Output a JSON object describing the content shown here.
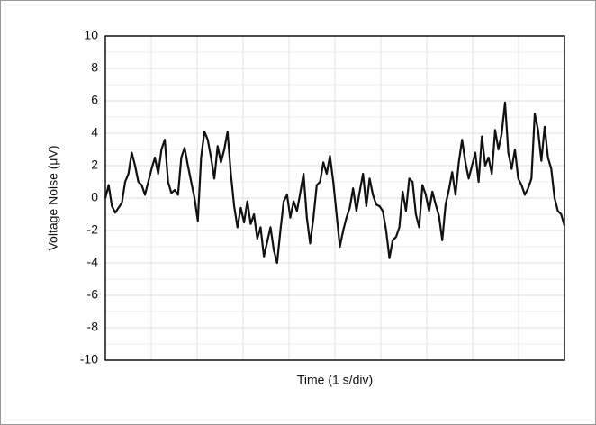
{
  "chart_data": {
    "type": "line",
    "xlabel": "Time (1 s/div)",
    "ylabel": "Voltage Noise (μV)",
    "ylim": [
      -10,
      10
    ],
    "yticks": [
      -10,
      -8,
      -6,
      -4,
      -2,
      0,
      2,
      4,
      6,
      8,
      10
    ],
    "grid": true,
    "color": "#111111",
    "values": [
      0,
      0.8,
      -0.5,
      -0.9,
      -0.6,
      -0.3,
      1,
      1.5,
      2.8,
      2,
      1,
      0.8,
      0.2,
      1,
      1.8,
      2.5,
      1.5,
      3,
      3.6,
      1,
      0.3,
      0.5,
      0.2,
      2.5,
      3.1,
      2,
      1,
      0,
      -1.4,
      2.5,
      4.1,
      3.6,
      2.5,
      1.2,
      3.2,
      2.2,
      3,
      4.1,
      1.5,
      -0.5,
      -1.8,
      -0.6,
      -1.5,
      -0.2,
      -1.6,
      -1,
      -2.5,
      -1.8,
      -3.6,
      -2.7,
      -1.8,
      -3.2,
      -4,
      -2,
      -0.2,
      0.2,
      -1.2,
      -0.2,
      -0.8,
      0.3,
      1.5,
      -1.2,
      -2.8,
      -1.2,
      0.8,
      1,
      2.2,
      1.5,
      2.6,
      1,
      -1,
      -3,
      -2,
      -1.2,
      -0.6,
      0.6,
      -0.8,
      0.4,
      1.5,
      -0.5,
      1.2,
      0.2,
      -0.4,
      -0.5,
      -0.8,
      -2,
      -3.7,
      -2.6,
      -2.4,
      -1.8,
      0.4,
      -0.8,
      1.2,
      1,
      -1,
      -1.8,
      0.8,
      0.2,
      -0.8,
      0.4,
      -0.4,
      -1.1,
      -2.6,
      -0.4,
      0.5,
      1.6,
      0.2,
      2.2,
      3.6,
      2.2,
      1.2,
      2,
      2.8,
      1,
      3.8,
      2,
      2.5,
      1.5,
      4.2,
      3,
      4,
      5.9,
      2.8,
      1.8,
      3,
      1.2,
      0.8,
      0.2,
      0.6,
      1.2,
      5.2,
      4.2,
      2.3,
      4.4,
      2.5,
      1.8,
      0,
      -0.8,
      -1,
      -1.7
    ]
  }
}
